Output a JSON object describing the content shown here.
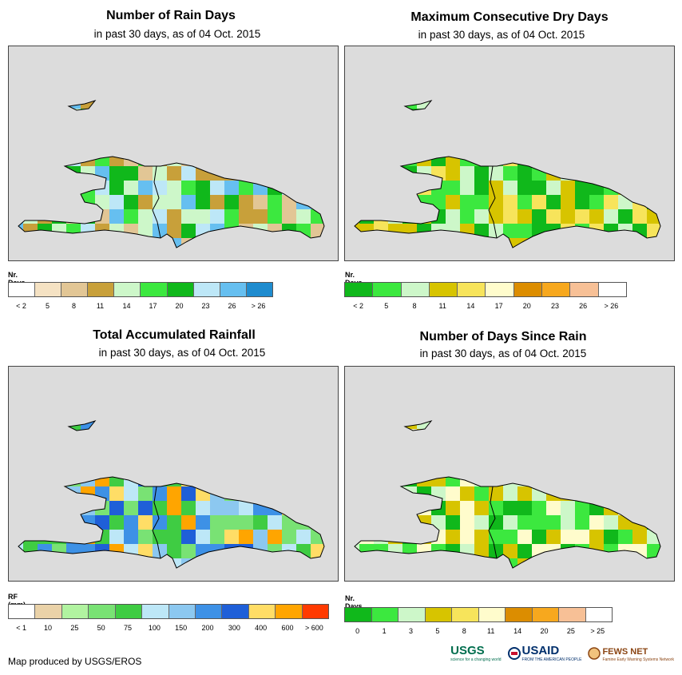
{
  "panels": [
    {
      "id": "rain-days",
      "title": "Number of Rain Days",
      "subtitle": "in past 30 days, as of 04 Oct. 2015",
      "legend_title": "Nr. Days",
      "legend_colors": [
        "#ffffff",
        "#f5e2c3",
        "#e2c695",
        "#c8a03a",
        "#cdf7c9",
        "#3ce83f",
        "#10b81b",
        "#bde7f7",
        "#66bff0",
        "#1f8ccf"
      ],
      "legend_ticks": [
        "< 2",
        "5",
        "8",
        "11",
        "14",
        "17",
        "20",
        "23",
        "26",
        "> 26"
      ]
    },
    {
      "id": "max-dry-days",
      "title": "Maximum Consecutive Dry Days",
      "subtitle": "in past 30 days, as of 04 Oct. 2015",
      "legend_title": "Nr. Days",
      "legend_colors": [
        "#10b81b",
        "#3ce83f",
        "#cdf7c9",
        "#d7c400",
        "#f7e45b",
        "#fffccc",
        "#dc8d00",
        "#f7a81e",
        "#f7c096",
        "#ffffff"
      ],
      "legend_ticks": [
        "< 2",
        "5",
        "8",
        "11",
        "14",
        "17",
        "20",
        "23",
        "26",
        "> 26"
      ]
    },
    {
      "id": "total-rainfall",
      "title": "Total Accumulated Rainfall",
      "subtitle": "in past 30 days, as of 04 Oct. 2015",
      "legend_title": "RF (mm)",
      "legend_colors": [
        "#ffffff",
        "#ead2a8",
        "#b1f3a0",
        "#79e274",
        "#3fcc43",
        "#bde7f7",
        "#8cc8f0",
        "#3d91e6",
        "#1f5fd8",
        "#ffdd66",
        "#ffa500",
        "#ff3a00"
      ],
      "legend_ticks": [
        "< 1",
        "10",
        "25",
        "50",
        "75",
        "100",
        "150",
        "200",
        "300",
        "400",
        "600",
        "> 600"
      ]
    },
    {
      "id": "days-since-rain",
      "title": "Number of Days Since Rain",
      "subtitle": "in past 30 days, as of 04 Oct. 2015",
      "legend_title": "Nr. Days",
      "legend_colors": [
        "#10b81b",
        "#3ce83f",
        "#cdf7c9",
        "#d7c400",
        "#f7e45b",
        "#fffccc",
        "#dc8d00",
        "#f7a81e",
        "#f7c096",
        "#ffffff"
      ],
      "legend_ticks": [
        "0",
        "1",
        "3",
        "5",
        "8",
        "11",
        "14",
        "20",
        "25",
        "> 25"
      ]
    }
  ],
  "footer": "Map produced by USGS/EROS",
  "logos": {
    "usgs": "USGS",
    "usgs_tag": "science for a changing world",
    "usaid": "USAID",
    "usaid_tag": "FROM THE AMERICAN PEOPLE",
    "fewsnet": "FEWS NET",
    "fewsnet_tag": "Famine Early Warning Systems Network"
  }
}
